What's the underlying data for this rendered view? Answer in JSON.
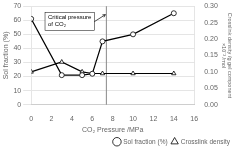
{
  "chart_data": {
    "type": "line",
    "x": [
      0,
      3,
      5,
      6,
      7,
      10,
      14
    ],
    "series": [
      {
        "name": "Sol fraction (%)",
        "color": "#000000",
        "marker": "circle",
        "values": [
          61,
          21,
          21,
          22,
          45,
          50,
          65
        ]
      },
      {
        "name": "Crosslink density",
        "color": "#000000",
        "marker": "triangle",
        "axis": "y2",
        "values": [
          0.1,
          0.13,
          0.1,
          0.095,
          0.095,
          0.095,
          0.095
        ]
      }
    ],
    "xlabel": "CO₂ Pressure /MPa",
    "ylabel": "Sol fraction (%)",
    "y2label": "Crosslink density /g gel component\n×10⁻³ /mol",
    "xlim": [
      0,
      16
    ],
    "xticks": [
      0,
      2,
      4,
      6,
      8,
      10,
      12,
      14,
      16
    ],
    "ylim": [
      0,
      70
    ],
    "yticks": [
      0,
      10,
      20,
      30,
      40,
      50,
      60,
      70
    ],
    "y2lim": [
      0,
      0.3
    ],
    "y2ticks": [
      {
        "value": 0,
        "label": "0.00"
      },
      {
        "value": 0.05,
        "label": "0.05"
      },
      {
        "value": 0.1,
        "label": "0.10"
      },
      {
        "value": 0.15,
        "label": "0.15"
      },
      {
        "value": 0.2,
        "label": "0.20"
      },
      {
        "value": 0.25,
        "label": "0.25"
      },
      {
        "value": 0.3,
        "label": "0.30"
      }
    ],
    "grid": true,
    "legend": "lower right",
    "vlines": [
      {
        "x": 7.38,
        "color": "#888888"
      }
    ],
    "annotations": [
      {
        "text": "Critical pressure\nof CO₂",
        "x": 7.38,
        "y": 64
      }
    ]
  }
}
